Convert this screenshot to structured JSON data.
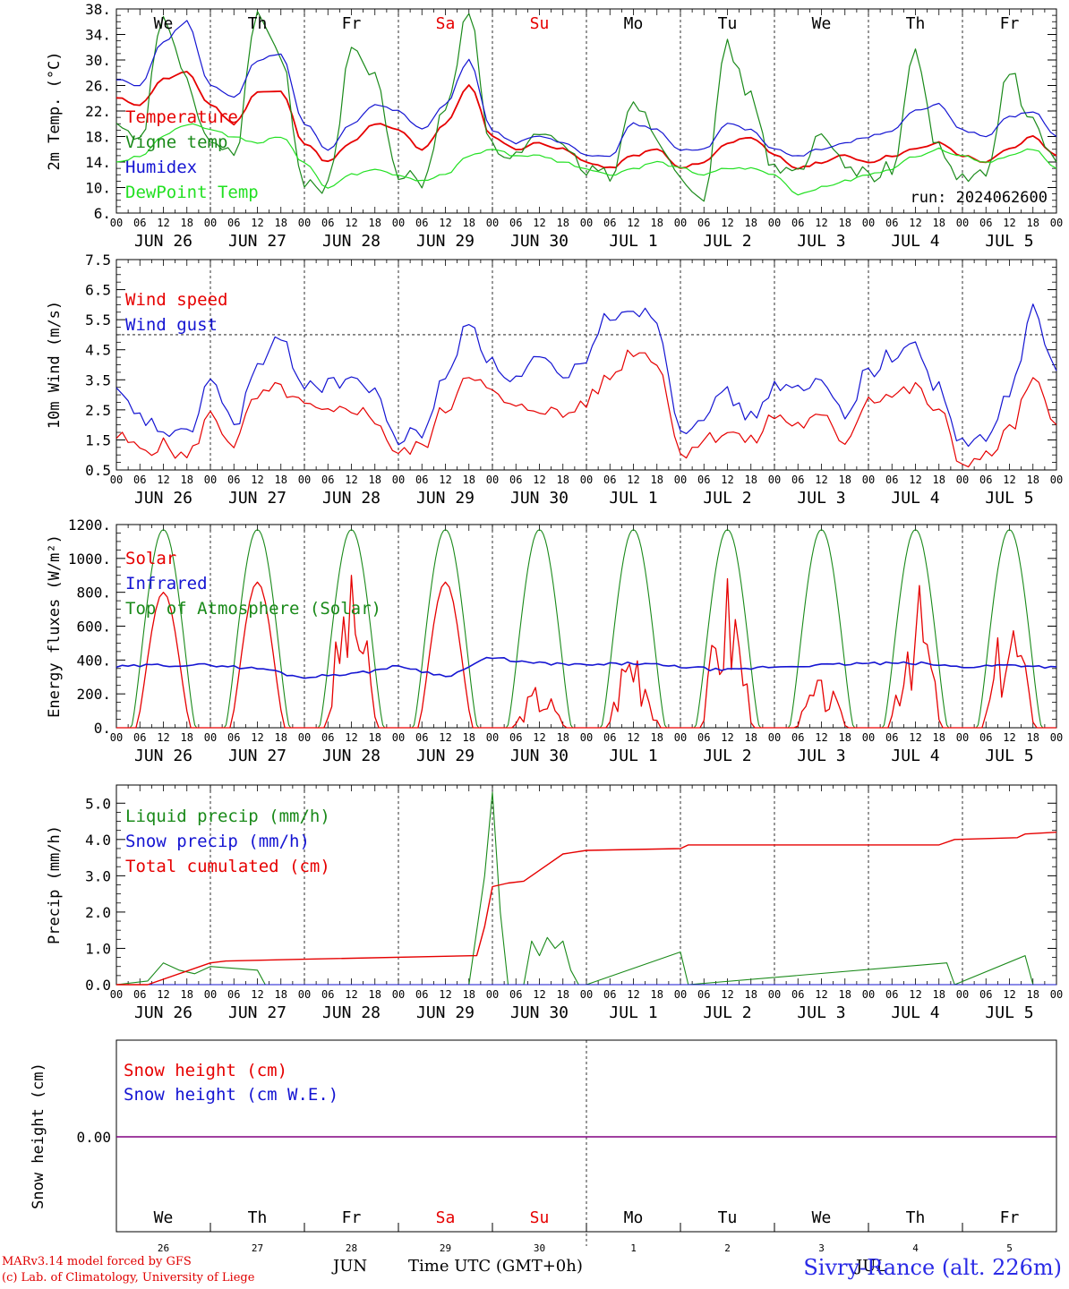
{
  "footer": {
    "model_line": "MARv3.14 model forced by GFS",
    "credit_line": "(c) Lab. of Climatology, University of Liege",
    "time_label": "Time UTC (GMT+0h)",
    "station": "Sivry-Rance (alt. 226m)",
    "month_jun": "JUN",
    "month_jul": "JUL"
  },
  "day_names": [
    "We",
    "Th",
    "Fr",
    "Sa",
    "Su",
    "Mo",
    "Tu",
    "We",
    "Th",
    "Fr"
  ],
  "weekend_days": [
    3,
    4
  ],
  "date_labels": [
    "JUN 26",
    "JUN 27",
    "JUN 28",
    "JUN 29",
    "JUN 30",
    "JUL  1",
    "JUL  2",
    "JUL  3",
    "JUL  4",
    "JUL  5"
  ],
  "day_numbers": [
    "26",
    "27",
    "28",
    "29",
    "30",
    "1",
    "2",
    "3",
    "4",
    "5"
  ],
  "hour_ticks": [
    "00",
    "06",
    "12",
    "18"
  ],
  "colors": {
    "red": "#e60000",
    "blue": "#1414d2",
    "green": "#1a8a1a",
    "lightgreen": "#22e022",
    "purple": "#800080"
  },
  "chart_data": [
    {
      "type": "line",
      "ylabel": "2m Temp. (°C)",
      "ylim": [
        6,
        38
      ],
      "yticks": [
        "6.",
        "10.",
        "14.",
        "18.",
        "22.",
        "26.",
        "30.",
        "34.",
        "38."
      ],
      "run_label": "run: 2024062600",
      "x_unit": "hours since JUN 26 00 UTC",
      "series": [
        {
          "name": "Temperature",
          "color": "red",
          "x": [
            0,
            6,
            12,
            18,
            24,
            30,
            36,
            42,
            48,
            54,
            60,
            66,
            72,
            78,
            84,
            90,
            96,
            102,
            108,
            114,
            120,
            126,
            132,
            138,
            144,
            150,
            156,
            162,
            168,
            174,
            180,
            186,
            192,
            198,
            204,
            210,
            216,
            222,
            228,
            234,
            240
          ],
          "y": [
            24,
            23,
            27,
            28,
            23,
            20,
            25,
            25,
            17,
            14,
            17,
            20,
            19,
            16,
            20,
            26,
            18,
            16,
            17,
            16,
            14,
            13,
            15,
            16,
            13,
            14,
            17,
            18,
            15,
            13,
            14,
            15,
            14,
            15,
            16,
            17,
            15,
            14,
            16,
            18,
            15
          ]
        },
        {
          "name": "Vigne temp",
          "color": "green",
          "x": [
            0,
            6,
            12,
            18,
            24,
            30,
            36,
            42,
            48,
            54,
            60,
            66,
            72,
            78,
            84,
            90,
            96,
            102,
            108,
            114,
            120,
            126,
            132,
            138,
            144,
            150,
            156,
            162,
            168,
            174,
            180,
            186,
            192,
            198,
            204,
            210,
            216,
            222,
            228,
            234,
            240
          ],
          "y": [
            19,
            17,
            37,
            26,
            17,
            15,
            37,
            30,
            11,
            10,
            32,
            27,
            12,
            11,
            22,
            38,
            16,
            15,
            18,
            16,
            13,
            12,
            24,
            18,
            12,
            9,
            32,
            24,
            13,
            12,
            18,
            14,
            12,
            13,
            31,
            16,
            11,
            12,
            28,
            20,
            14
          ]
        },
        {
          "name": "Humidex",
          "color": "blue",
          "x": [
            0,
            6,
            12,
            18,
            24,
            30,
            36,
            42,
            48,
            54,
            60,
            66,
            72,
            78,
            84,
            90,
            96,
            102,
            108,
            114,
            120,
            126,
            132,
            138,
            144,
            150,
            156,
            162,
            168,
            174,
            180,
            186,
            192,
            198,
            204,
            210,
            216,
            222,
            228,
            234,
            240
          ],
          "y": [
            27,
            26,
            33,
            36,
            26,
            24,
            30,
            31,
            20,
            16,
            20,
            23,
            22,
            19,
            23,
            30,
            19,
            17,
            18,
            17,
            15,
            15,
            20,
            19,
            16,
            16,
            20,
            19,
            16,
            15,
            16,
            17,
            18,
            19,
            22,
            23,
            19,
            18,
            21,
            22,
            18
          ]
        },
        {
          "name": "DewPoint Temp",
          "color": "lightgreen",
          "x": [
            0,
            6,
            12,
            18,
            24,
            30,
            36,
            42,
            48,
            54,
            60,
            66,
            72,
            78,
            84,
            90,
            96,
            102,
            108,
            114,
            120,
            126,
            132,
            138,
            144,
            150,
            156,
            162,
            168,
            174,
            180,
            186,
            192,
            198,
            204,
            210,
            216,
            222,
            228,
            234,
            240
          ],
          "y": [
            14,
            15,
            18,
            20,
            19,
            18,
            17,
            18,
            14,
            10,
            12,
            13,
            12,
            11,
            12,
            15,
            16,
            15,
            15,
            14,
            13,
            12,
            13,
            14,
            13,
            12,
            13,
            13,
            12,
            9,
            10,
            11,
            12,
            13,
            15,
            16,
            15,
            14,
            15,
            16,
            13
          ]
        }
      ]
    },
    {
      "type": "line",
      "ylabel": "10m Wind (m/s)",
      "ylim": [
        0.5,
        7.5
      ],
      "yticks": [
        "0.5",
        "1.5",
        "2.5",
        "3.5",
        "4.5",
        "5.5",
        "6.5",
        "7.5"
      ],
      "reference_line": 5.0,
      "x_unit": "hours since JUN 26 00 UTC",
      "series": [
        {
          "name": "Wind speed",
          "color": "red",
          "x": [
            0,
            6,
            12,
            18,
            24,
            30,
            36,
            42,
            48,
            54,
            60,
            66,
            72,
            78,
            84,
            90,
            96,
            102,
            108,
            114,
            120,
            126,
            132,
            138,
            144,
            150,
            156,
            162,
            168,
            174,
            180,
            186,
            192,
            198,
            204,
            210,
            216,
            222,
            228,
            234,
            240
          ],
          "y": [
            1.6,
            1.2,
            1.3,
            0.9,
            2.3,
            1.4,
            2.9,
            3.2,
            2.6,
            2.3,
            2.6,
            2.2,
            1.0,
            1.3,
            2.5,
            3.8,
            3.0,
            2.5,
            2.6,
            2.3,
            2.8,
            3.6,
            4.5,
            4.2,
            1.1,
            1.5,
            1.8,
            1.4,
            2.3,
            2.0,
            2.2,
            1.5,
            2.9,
            3.0,
            3.2,
            2.4,
            0.7,
            0.9,
            1.8,
            3.4,
            2.0
          ]
        },
        {
          "name": "Wind gust",
          "color": "blue",
          "x": [
            0,
            6,
            12,
            18,
            24,
            30,
            36,
            42,
            48,
            54,
            60,
            66,
            72,
            78,
            84,
            90,
            96,
            102,
            108,
            114,
            120,
            126,
            132,
            138,
            144,
            150,
            156,
            162,
            168,
            174,
            180,
            186,
            192,
            198,
            204,
            210,
            216,
            222,
            228,
            234,
            240
          ],
          "y": [
            3.0,
            2.2,
            1.8,
            1.6,
            3.5,
            2.0,
            3.9,
            4.8,
            3.4,
            3.3,
            3.6,
            3.0,
            1.5,
            1.8,
            3.5,
            5.5,
            4.0,
            3.5,
            4.2,
            3.4,
            4.3,
            5.7,
            5.9,
            5.5,
            1.9,
            2.4,
            3.0,
            2.2,
            3.3,
            3.1,
            3.4,
            2.4,
            3.8,
            4.3,
            4.6,
            3.2,
            1.3,
            1.5,
            3.0,
            5.8,
            3.8
          ]
        }
      ]
    },
    {
      "type": "line",
      "ylabel": "Energy fluxes (W/m²)",
      "ylim": [
        0,
        1200
      ],
      "yticks": [
        "0.",
        "200.",
        "400.",
        "600.",
        "800.",
        "1000.",
        "1200."
      ],
      "x_unit": "hours since JUN 26 00 UTC",
      "series": [
        {
          "name": "Solar",
          "color": "red",
          "day_peaks": [
            800,
            860,
            900,
            860,
            240,
            540,
            880,
            280,
            840,
            680
          ]
        },
        {
          "name": "Infrared",
          "color": "blue",
          "x": [
            0,
            12,
            24,
            36,
            48,
            60,
            72,
            84,
            96,
            108,
            120,
            132,
            144,
            156,
            168,
            180,
            192,
            204,
            216,
            228,
            240
          ],
          "y": [
            360,
            370,
            370,
            350,
            300,
            320,
            360,
            310,
            410,
            380,
            370,
            380,
            360,
            340,
            360,
            370,
            380,
            380,
            360,
            370,
            360
          ]
        },
        {
          "name": "Top of Atmosphere (Solar)",
          "color": "green",
          "day_peaks": [
            1170,
            1170,
            1170,
            1170,
            1170,
            1170,
            1170,
            1170,
            1170,
            1170
          ]
        }
      ]
    },
    {
      "type": "line",
      "ylabel": "Precip (mm/h)",
      "ylim": [
        0,
        5.5
      ],
      "yticks": [
        "0.0",
        "1.0",
        "2.0",
        "3.0",
        "4.0",
        "5.0"
      ],
      "x_unit": "hours since JUN 26 00 UTC",
      "series": [
        {
          "name": "Liquid precip (mm/h)",
          "color": "green",
          "x": [
            0,
            8,
            12,
            16,
            20,
            24,
            36,
            38,
            40,
            90,
            94,
            96,
            98,
            100,
            104,
            106,
            108,
            110,
            112,
            114,
            116,
            118,
            120,
            144,
            146,
            212,
            214,
            232,
            234,
            240
          ],
          "y": [
            0,
            0.1,
            0.6,
            0.4,
            0.3,
            0.5,
            0.4,
            0,
            0,
            0,
            3.0,
            5.3,
            2.0,
            0,
            0,
            1.2,
            0.8,
            1.3,
            1.0,
            1.2,
            0.4,
            0,
            0,
            0.9,
            0,
            0.6,
            0,
            0.8,
            0,
            0
          ]
        },
        {
          "name": "Snow precip (mm/h)",
          "color": "blue",
          "x": [
            0,
            240
          ],
          "y": [
            0,
            0
          ]
        },
        {
          "name": "Total cumulated (cm)",
          "color": "red",
          "x": [
            0,
            8,
            24,
            28,
            48,
            92,
            94,
            96,
            100,
            104,
            110,
            114,
            120,
            144,
            146,
            210,
            214,
            230,
            232,
            240
          ],
          "y": [
            0,
            0,
            0.6,
            0.65,
            0.7,
            0.8,
            1.6,
            2.7,
            2.8,
            2.85,
            3.3,
            3.6,
            3.7,
            3.75,
            3.85,
            3.85,
            4.0,
            4.05,
            4.15,
            4.2
          ]
        }
      ]
    },
    {
      "type": "line",
      "ylabel": "Snow height (cm)",
      "yticks": [
        "0.00"
      ],
      "x_unit": "hours since JUN 26 00 UTC",
      "series": [
        {
          "name": "Snow height (cm)",
          "color": "red",
          "x": [
            0,
            240
          ],
          "y": [
            0,
            0
          ]
        },
        {
          "name": "Snow height (cm W.E.)",
          "color": "blue",
          "x": [
            0,
            240
          ],
          "y": [
            0,
            0
          ]
        }
      ]
    }
  ]
}
